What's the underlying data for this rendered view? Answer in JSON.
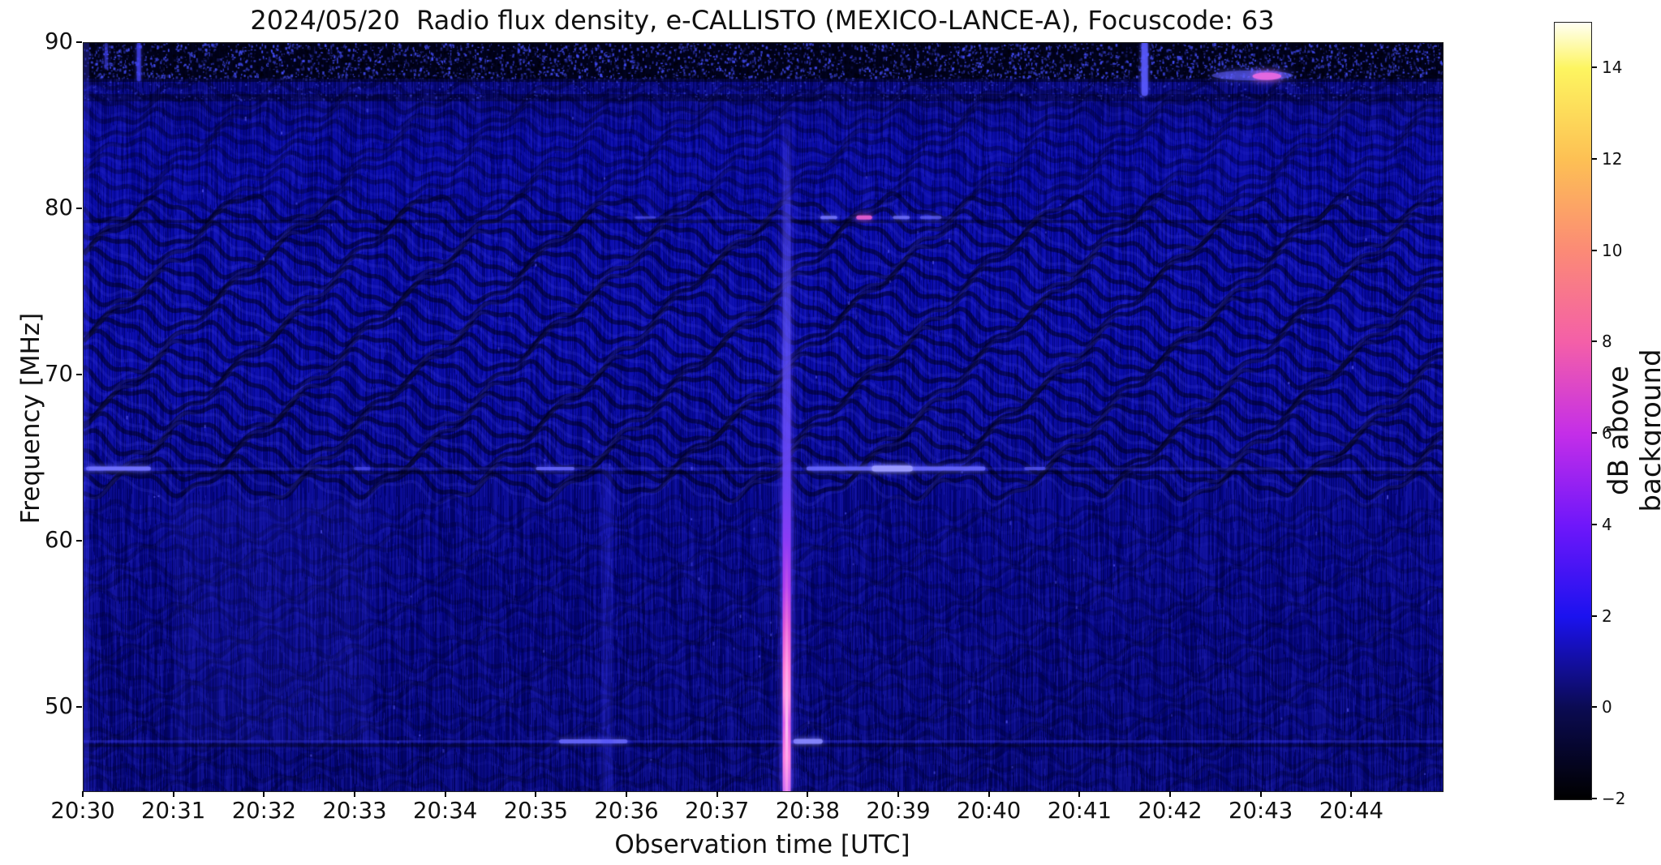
{
  "chart_data": {
    "type": "heatmap",
    "title": "2024/05/20  Radio flux density, e-CALLISTO (MEXICO-LANCE-A), Focuscode: 63",
    "xlabel": "Observation time [UTC]",
    "ylabel": "Frequency [MHz]",
    "x_tick_labels": [
      "20:30",
      "20:31",
      "20:32",
      "20:33",
      "20:34",
      "20:35",
      "20:36",
      "20:37",
      "20:38",
      "20:39",
      "20:40",
      "20:41",
      "20:42",
      "20:43",
      "20:44"
    ],
    "x_range_minutes_after_2030": [
      0,
      15
    ],
    "y_ticks_mhz": [
      90,
      80,
      70,
      60,
      50
    ],
    "y_range_mhz": [
      45,
      90
    ],
    "grid": false,
    "legend": "none",
    "colorbar": {
      "label": "dB above background",
      "side": "right",
      "tick_labels": [
        "14",
        "12",
        "10",
        "8",
        "6",
        "4",
        "2",
        "0",
        "−2"
      ],
      "tick_values": [
        14,
        12,
        10,
        8,
        6,
        4,
        2,
        0,
        -2
      ],
      "value_range": [
        -2,
        15
      ],
      "gradient_stops": [
        {
          "value": -2,
          "color": "#000000"
        },
        {
          "value": 0,
          "color": "#0b0b52"
        },
        {
          "value": 2,
          "color": "#1b12ef"
        },
        {
          "value": 4,
          "color": "#6f17fa"
        },
        {
          "value": 6,
          "color": "#c42ee8"
        },
        {
          "value": 8,
          "color": "#f45fa8"
        },
        {
          "value": 10,
          "color": "#fb8a76"
        },
        {
          "value": 12,
          "color": "#fdc054"
        },
        {
          "value": 14,
          "color": "#fdf560"
        },
        {
          "value": 15,
          "color": "#fffff2"
        }
      ]
    },
    "spectrogram_features": {
      "background_db": 0,
      "burst": {
        "t_min": 7.76,
        "f_span_mhz": [
          45,
          86
        ],
        "peak_pink_f_mhz": [
          49,
          53
        ],
        "halo_color": "#7a3af8",
        "core_color": "#ff8fe2"
      },
      "vertical_streaks": [
        {
          "t_min": 11.71,
          "f_span_mhz": [
            87.0,
            90
          ],
          "color": "#5a5aff",
          "alpha": 0.8,
          "w": 8
        },
        {
          "t_min": 0.61,
          "f_span_mhz": [
            87.8,
            90
          ],
          "color": "#4646ff",
          "alpha": 0.65,
          "w": 5
        },
        {
          "t_min": 0.25,
          "f_span_mhz": [
            88.5,
            90
          ],
          "color": "#4646ff",
          "alpha": 0.45,
          "w": 4
        },
        {
          "t_min": 5.78,
          "f_span_mhz": [
            45,
            64.5
          ],
          "color": "#4040ff",
          "alpha": 0.12,
          "w": 14
        }
      ],
      "rfi_lines": [
        {
          "f_mhz": 64.4,
          "t_span_min": [
            0,
            15
          ],
          "color": "#5050ff",
          "alpha": 0.22,
          "lw": 3,
          "dashes": [
            {
              "t_span_min": [
                0.05,
                0.72
              ],
              "color": "#7272ff",
              "alpha": 0.95,
              "lw": 5
            },
            {
              "t_span_min": [
                3.0,
                3.15
              ],
              "color": "#5a5aff",
              "alpha": 0.5,
              "lw": 4
            },
            {
              "t_span_min": [
                5.01,
                5.4
              ],
              "color": "#6a6aff",
              "alpha": 0.8,
              "lw": 4
            },
            {
              "t_span_min": [
                8.0,
                9.93
              ],
              "color": "#6a6aff",
              "alpha": 0.85,
              "lw": 5
            },
            {
              "t_span_min": [
                8.73,
                9.12
              ],
              "color": "#9a9aff",
              "alpha": 1.0,
              "lw": 7
            },
            {
              "t_span_min": [
                10.4,
                10.6
              ],
              "color": "#6060ff",
              "alpha": 0.6,
              "lw": 4
            }
          ]
        },
        {
          "f_mhz": 79.5,
          "t_span_min": [
            5.9,
            9.8
          ],
          "color": "#5050ff",
          "alpha": 0.18,
          "lw": 3,
          "dashes": [
            {
              "t_span_min": [
                6.1,
                6.3
              ],
              "color": "#5d5dff",
              "alpha": 0.5,
              "lw": 3
            },
            {
              "t_span_min": [
                8.15,
                8.3
              ],
              "color": "#7a7aff",
              "alpha": 0.8,
              "lw": 4
            },
            {
              "t_span_min": [
                8.55,
                8.68
              ],
              "color": "#e85fd2",
              "alpha": 0.9,
              "lw": 5
            },
            {
              "t_span_min": [
                8.95,
                9.1
              ],
              "color": "#7a7aff",
              "alpha": 0.7,
              "lw": 4
            },
            {
              "t_span_min": [
                9.25,
                9.45
              ],
              "color": "#6a6aff",
              "alpha": 0.6,
              "lw": 4
            }
          ]
        },
        {
          "f_mhz": 48.0,
          "t_span_min": [
            0,
            15
          ],
          "color": "#4848ff",
          "alpha": 0.3,
          "lw": 3,
          "dashes": [
            {
              "t_span_min": [
                5.27,
                5.98
              ],
              "color": "#6a6aff",
              "alpha": 0.8,
              "lw": 5
            },
            {
              "t_span_min": [
                7.86,
                8.13
              ],
              "color": "#8888ff",
              "alpha": 0.9,
              "lw": 6
            }
          ]
        }
      ],
      "blobs": [
        {
          "t_min": 12.9,
          "f_mhz": 88.05,
          "rx_min": 0.45,
          "ry_mhz": 0.3,
          "color": "#5c5cff",
          "alpha": 0.55
        },
        {
          "t_min": 13.06,
          "f_mhz": 88.0,
          "rx_min": 0.16,
          "ry_mhz": 0.22,
          "color": "#e668e0",
          "alpha": 0.95
        }
      ],
      "bright_patch": {
        "t_span_min": [
          1.0,
          3.15
        ],
        "f_span_mhz": [
          47.5,
          62.5
        ],
        "color": "#3c3cd8",
        "alpha": 0.1
      }
    }
  }
}
